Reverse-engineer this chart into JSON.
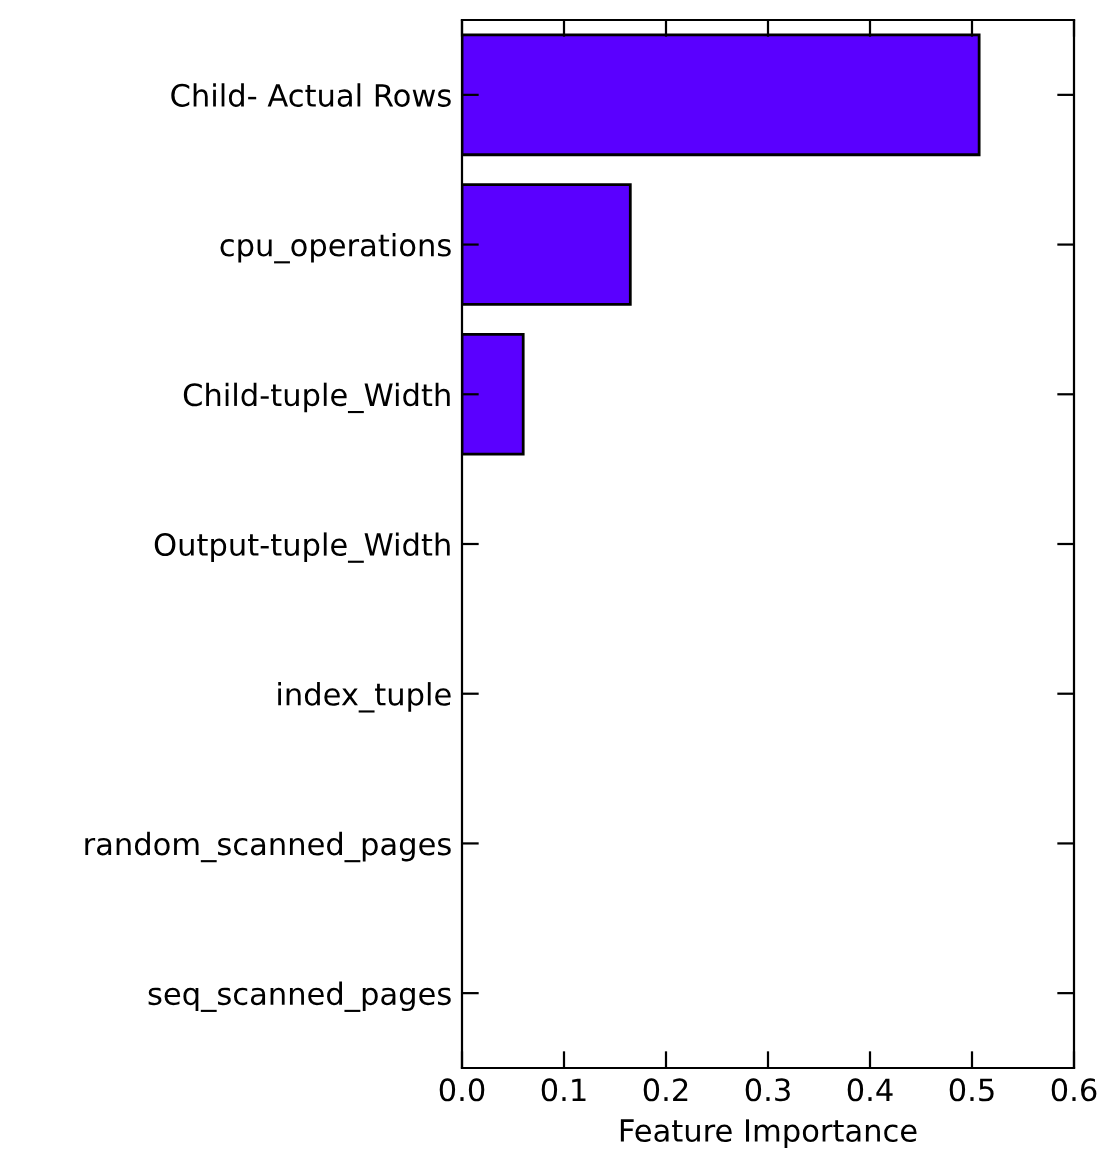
{
  "chart_data": {
    "type": "bar",
    "orientation": "horizontal",
    "categories": [
      "Child- Actual Rows",
      "cpu_operations",
      "Child-tuple_Width",
      "Output-tuple_Width",
      "index_tuple",
      "random_scanned_pages",
      "seq_scanned_pages"
    ],
    "values": [
      0.507,
      0.165,
      0.06,
      0.0,
      0.0,
      0.0,
      0.0
    ],
    "color": "#5a00ff",
    "xlabel": "Feature Importance",
    "xlim": [
      0.0,
      0.6
    ],
    "xticks": [
      {
        "value": 0.0,
        "label": "0.0"
      },
      {
        "value": 0.1,
        "label": "0.1"
      },
      {
        "value": 0.2,
        "label": "0.2"
      },
      {
        "value": 0.3,
        "label": "0.3"
      },
      {
        "value": 0.4,
        "label": "0.4"
      },
      {
        "value": 0.5,
        "label": "0.5"
      },
      {
        "value": 0.6,
        "label": "0.6"
      }
    ],
    "grid": false,
    "legend": false
  }
}
